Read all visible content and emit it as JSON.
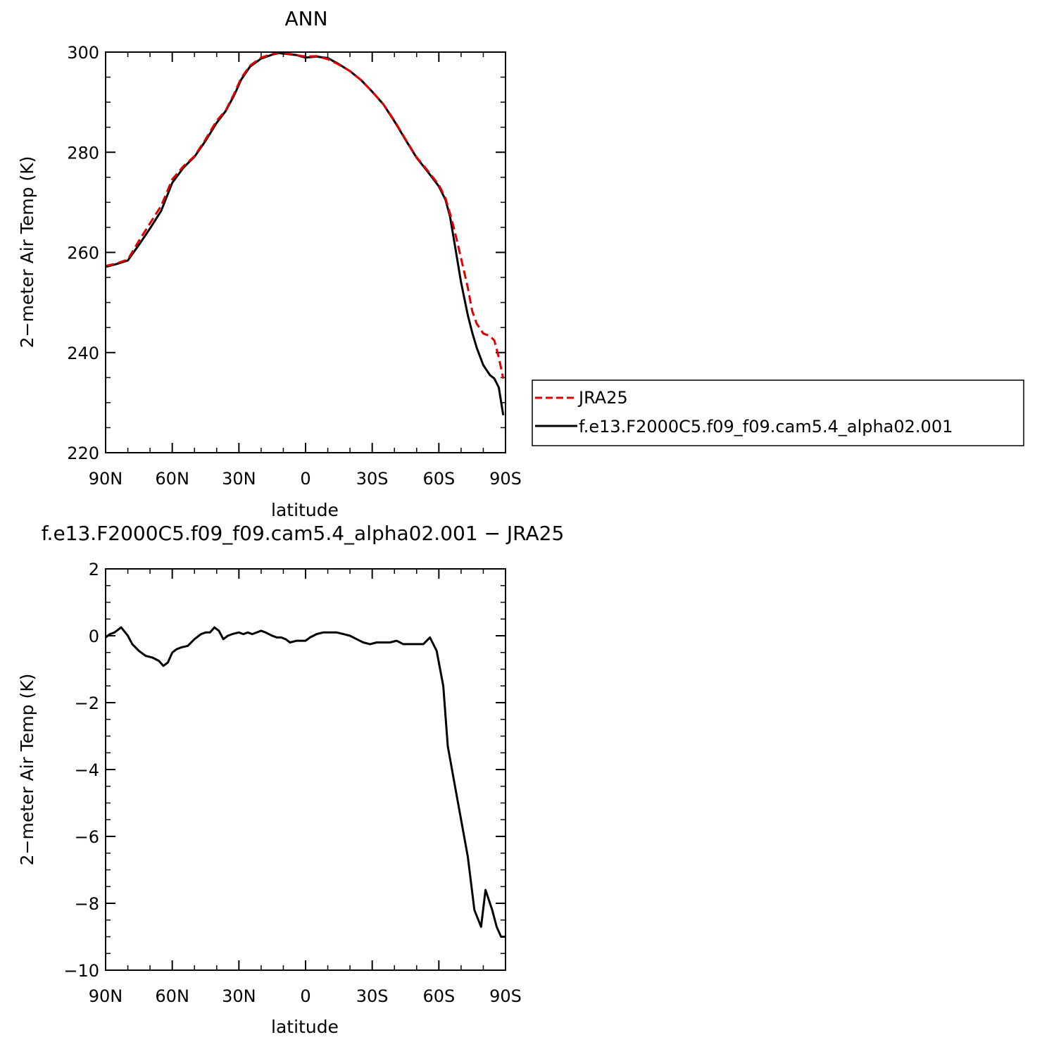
{
  "chart_data": [
    {
      "type": "line",
      "title": "ANN",
      "xlabel": "latitude",
      "ylabel": "2−meter Air Temp (K)",
      "xlim": [
        90,
        -90
      ],
      "ylim": [
        220,
        300
      ],
      "xticks": [
        90,
        60,
        30,
        0,
        -30,
        -60,
        -90
      ],
      "xtick_labels": [
        "90N",
        "60N",
        "30N",
        "0",
        "30S",
        "60S",
        "90S"
      ],
      "yticks": [
        220,
        240,
        260,
        280,
        300
      ],
      "ytick_labels": [
        "220",
        "240",
        "260",
        "280",
        "300"
      ],
      "grid": false,
      "legend": "right",
      "series": [
        {
          "name": "JRA25",
          "color": "#e00000",
          "style": "dashed",
          "x": [
            90,
            85,
            80,
            75,
            70,
            65,
            60,
            55,
            50,
            45,
            40,
            36,
            32,
            29,
            25,
            20,
            15,
            12,
            8,
            4,
            0,
            -5,
            -10,
            -15,
            -20,
            -25,
            -30,
            -35,
            -40,
            -45,
            -50,
            -55,
            -60,
            -63,
            -65,
            -67,
            -70,
            -73,
            -75,
            -77,
            -80,
            -83,
            -85,
            -87,
            -89
          ],
          "values": [
            257.3,
            257.8,
            258.6,
            262.3,
            265.8,
            269.3,
            274.6,
            277.2,
            279.2,
            282.6,
            286.3,
            288.3,
            291.8,
            294.8,
            297.3,
            298.9,
            299.6,
            299.9,
            299.7,
            299.4,
            299.1,
            299.2,
            298.6,
            297.5,
            296.2,
            294.4,
            292.1,
            289.6,
            286.3,
            282.6,
            279.0,
            276.3,
            273.5,
            270.8,
            267.8,
            264.5,
            258.8,
            253.0,
            248.3,
            245.8,
            243.8,
            243.3,
            242.4,
            239.0,
            234.8
          ]
        },
        {
          "name": "f.e13.F2000C5.f09_f09.cam5.4_alpha02.001",
          "color": "#000000",
          "style": "solid",
          "x": [
            90,
            85,
            80,
            75,
            70,
            65,
            60,
            55,
            50,
            45,
            40,
            36,
            32,
            29,
            25,
            20,
            15,
            12,
            8,
            4,
            0,
            -5,
            -10,
            -15,
            -20,
            -25,
            -30,
            -35,
            -40,
            -45,
            -50,
            -55,
            -60,
            -63,
            -65,
            -67,
            -70,
            -73,
            -75,
            -77,
            -80,
            -83,
            -85,
            -87,
            -89
          ],
          "values": [
            257.1,
            257.7,
            258.4,
            261.5,
            264.8,
            268.3,
            273.9,
            276.9,
            279.1,
            282.3,
            285.9,
            288.2,
            291.5,
            294.5,
            297.1,
            298.7,
            299.5,
            299.8,
            299.6,
            299.4,
            298.9,
            299.1,
            298.8,
            297.6,
            296.2,
            294.4,
            292.1,
            289.6,
            286.2,
            282.5,
            278.9,
            276.1,
            273.2,
            270.5,
            267.2,
            262.0,
            254.0,
            247.5,
            244.0,
            241.0,
            237.5,
            235.5,
            234.8,
            233.0,
            227.5
          ]
        }
      ]
    },
    {
      "type": "line",
      "title": "f.e13.F2000C5.f09_f09.cam5.4_alpha02.001  −  JRA25",
      "xlabel": "latitude",
      "ylabel": "2−meter Air Temp (K)",
      "xlim": [
        90,
        -90
      ],
      "ylim": [
        -10,
        2
      ],
      "xticks": [
        90,
        60,
        30,
        0,
        -30,
        -60,
        -90
      ],
      "xtick_labels": [
        "90N",
        "60N",
        "30N",
        "0",
        "30S",
        "60S",
        "90S"
      ],
      "yticks": [
        -10,
        -8,
        -6,
        -4,
        -2,
        0,
        2
      ],
      "ytick_labels": [
        "−10",
        "−8",
        "−6",
        "−4",
        "−2",
        "0",
        "2"
      ],
      "grid": false,
      "series": [
        {
          "color": "#000000",
          "style": "solid",
          "x": [
            90,
            88,
            86,
            83,
            80,
            78,
            75,
            72,
            69,
            66,
            64,
            62,
            60,
            58,
            56,
            53,
            50,
            47,
            45,
            43,
            41,
            39,
            37,
            35,
            33,
            30,
            28,
            26,
            24,
            22,
            20,
            18,
            15,
            13,
            11,
            9,
            7,
            4,
            2,
            0,
            -2,
            -5,
            -8,
            -11,
            -14,
            -17,
            -20,
            -23,
            -26,
            -29,
            -32,
            -35,
            -38,
            -41,
            -44,
            -47,
            -50,
            -53,
            -56,
            -59,
            -62,
            -64,
            -67,
            -70,
            -73,
            -76,
            -79,
            -81,
            -84,
            -86,
            -88,
            -90
          ],
          "values": [
            -0.05,
            0.05,
            0.1,
            0.25,
            0.0,
            -0.25,
            -0.45,
            -0.6,
            -0.65,
            -0.75,
            -0.9,
            -0.8,
            -0.5,
            -0.4,
            -0.35,
            -0.3,
            -0.1,
            0.05,
            0.1,
            0.1,
            0.25,
            0.15,
            -0.1,
            0.0,
            0.05,
            0.1,
            0.05,
            0.1,
            0.05,
            0.1,
            0.15,
            0.1,
            0.0,
            -0.05,
            -0.05,
            -0.1,
            -0.2,
            -0.15,
            -0.15,
            -0.15,
            -0.05,
            0.05,
            0.1,
            0.1,
            0.1,
            0.05,
            0.0,
            -0.1,
            -0.2,
            -0.25,
            -0.2,
            -0.2,
            -0.2,
            -0.15,
            -0.25,
            -0.25,
            -0.25,
            -0.25,
            -0.05,
            -0.45,
            -1.5,
            -3.3,
            -4.4,
            -5.5,
            -6.6,
            -8.2,
            -8.7,
            -7.6,
            -8.2,
            -8.7,
            -9.0,
            -9.0
          ]
        }
      ]
    }
  ]
}
